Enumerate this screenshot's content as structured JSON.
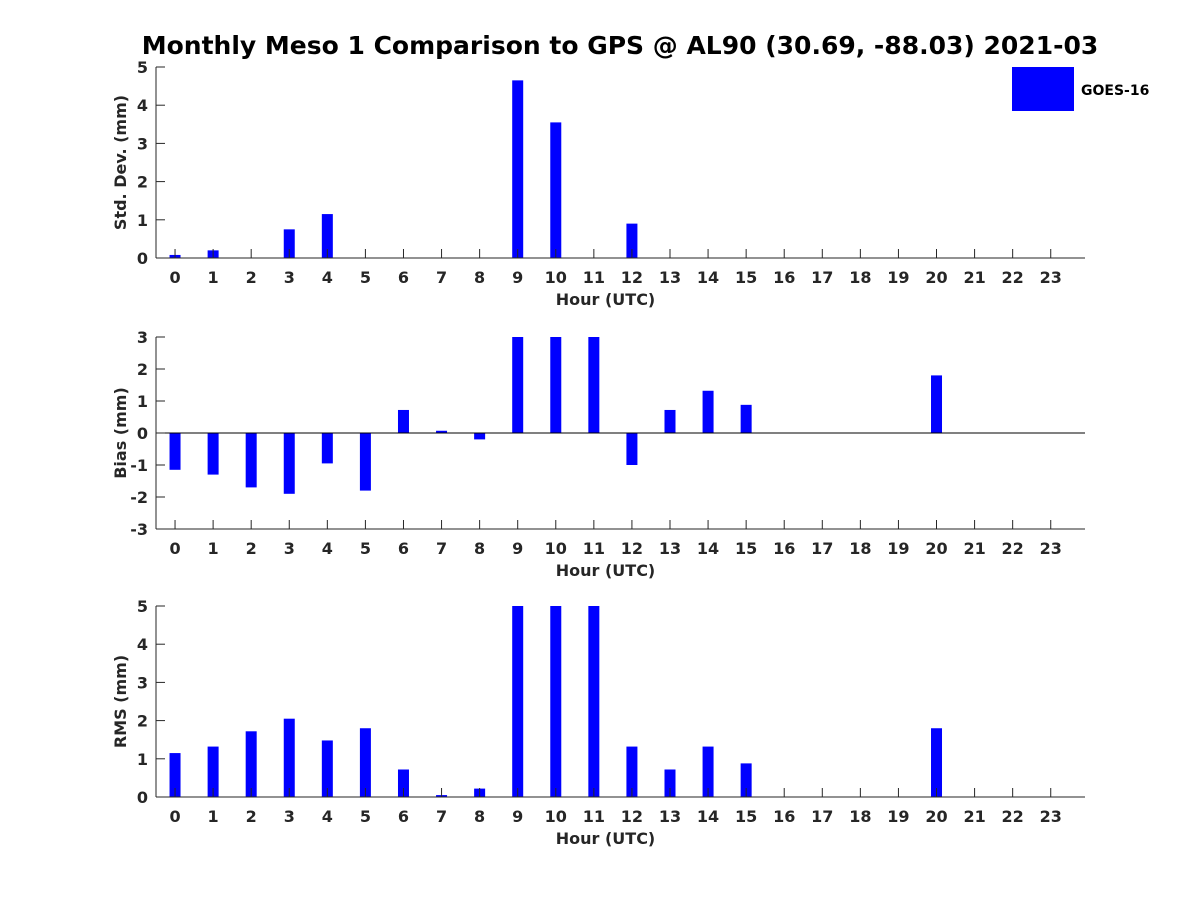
{
  "title": "Monthly Meso 1 Comparison to GPS @ AL90 (30.69, -88.03) 2021-03",
  "legend": {
    "label": "GOES-16",
    "color": "#0000ff"
  },
  "colors": {
    "bar": "#0000ff",
    "axis": "#262626"
  },
  "chart_data": [
    {
      "type": "bar",
      "title": "Monthly Meso 1 Comparison to GPS @ AL90 (30.69, -88.03) 2021-03",
      "xlabel": "Hour (UTC)",
      "ylabel": "Std. Dev. (mm)",
      "xlim": [
        -0.5,
        23.9
      ],
      "ylim": [
        0,
        5
      ],
      "yticks": [
        0,
        1,
        2,
        3,
        4,
        5
      ],
      "categories": [
        "0",
        "1",
        "2",
        "3",
        "4",
        "5",
        "6",
        "7",
        "8",
        "9",
        "10",
        "11",
        "12",
        "13",
        "14",
        "15",
        "16",
        "17",
        "18",
        "19",
        "20",
        "21",
        "22",
        "23"
      ],
      "series": [
        {
          "name": "GOES-16",
          "values": [
            0.08,
            0.2,
            null,
            0.75,
            1.15,
            null,
            null,
            null,
            null,
            4.65,
            3.55,
            null,
            0.9,
            null,
            null,
            null,
            null,
            null,
            null,
            null,
            null,
            null,
            null,
            null
          ]
        }
      ]
    },
    {
      "type": "bar",
      "xlabel": "Hour (UTC)",
      "ylabel": "Bias (mm)",
      "xlim": [
        -0.5,
        23.9
      ],
      "ylim": [
        -3,
        3
      ],
      "yticks": [
        -3,
        -2,
        -1,
        0,
        1,
        2,
        3
      ],
      "zero_line": true,
      "categories": [
        "0",
        "1",
        "2",
        "3",
        "4",
        "5",
        "6",
        "7",
        "8",
        "9",
        "10",
        "11",
        "12",
        "13",
        "14",
        "15",
        "16",
        "17",
        "18",
        "19",
        "20",
        "21",
        "22",
        "23"
      ],
      "series": [
        {
          "name": "GOES-16",
          "values": [
            -1.15,
            -1.3,
            -1.7,
            -1.9,
            -0.95,
            -1.8,
            0.72,
            0.07,
            -0.2,
            3.0,
            3.0,
            3.0,
            -1.0,
            0.72,
            1.32,
            0.88,
            null,
            null,
            null,
            null,
            1.8,
            null,
            null,
            null
          ]
        }
      ]
    },
    {
      "type": "bar",
      "xlabel": "Hour (UTC)",
      "ylabel": "RMS (mm)",
      "xlim": [
        -0.5,
        23.9
      ],
      "ylim": [
        0,
        5
      ],
      "yticks": [
        0,
        1,
        2,
        3,
        4,
        5
      ],
      "categories": [
        "0",
        "1",
        "2",
        "3",
        "4",
        "5",
        "6",
        "7",
        "8",
        "9",
        "10",
        "11",
        "12",
        "13",
        "14",
        "15",
        "16",
        "17",
        "18",
        "19",
        "20",
        "21",
        "22",
        "23"
      ],
      "series": [
        {
          "name": "GOES-16",
          "values": [
            1.15,
            1.32,
            1.72,
            2.05,
            1.48,
            1.8,
            0.72,
            0.05,
            0.22,
            5.0,
            5.0,
            5.0,
            1.32,
            0.72,
            1.32,
            0.88,
            null,
            null,
            null,
            null,
            1.8,
            null,
            null,
            null
          ]
        }
      ]
    }
  ]
}
